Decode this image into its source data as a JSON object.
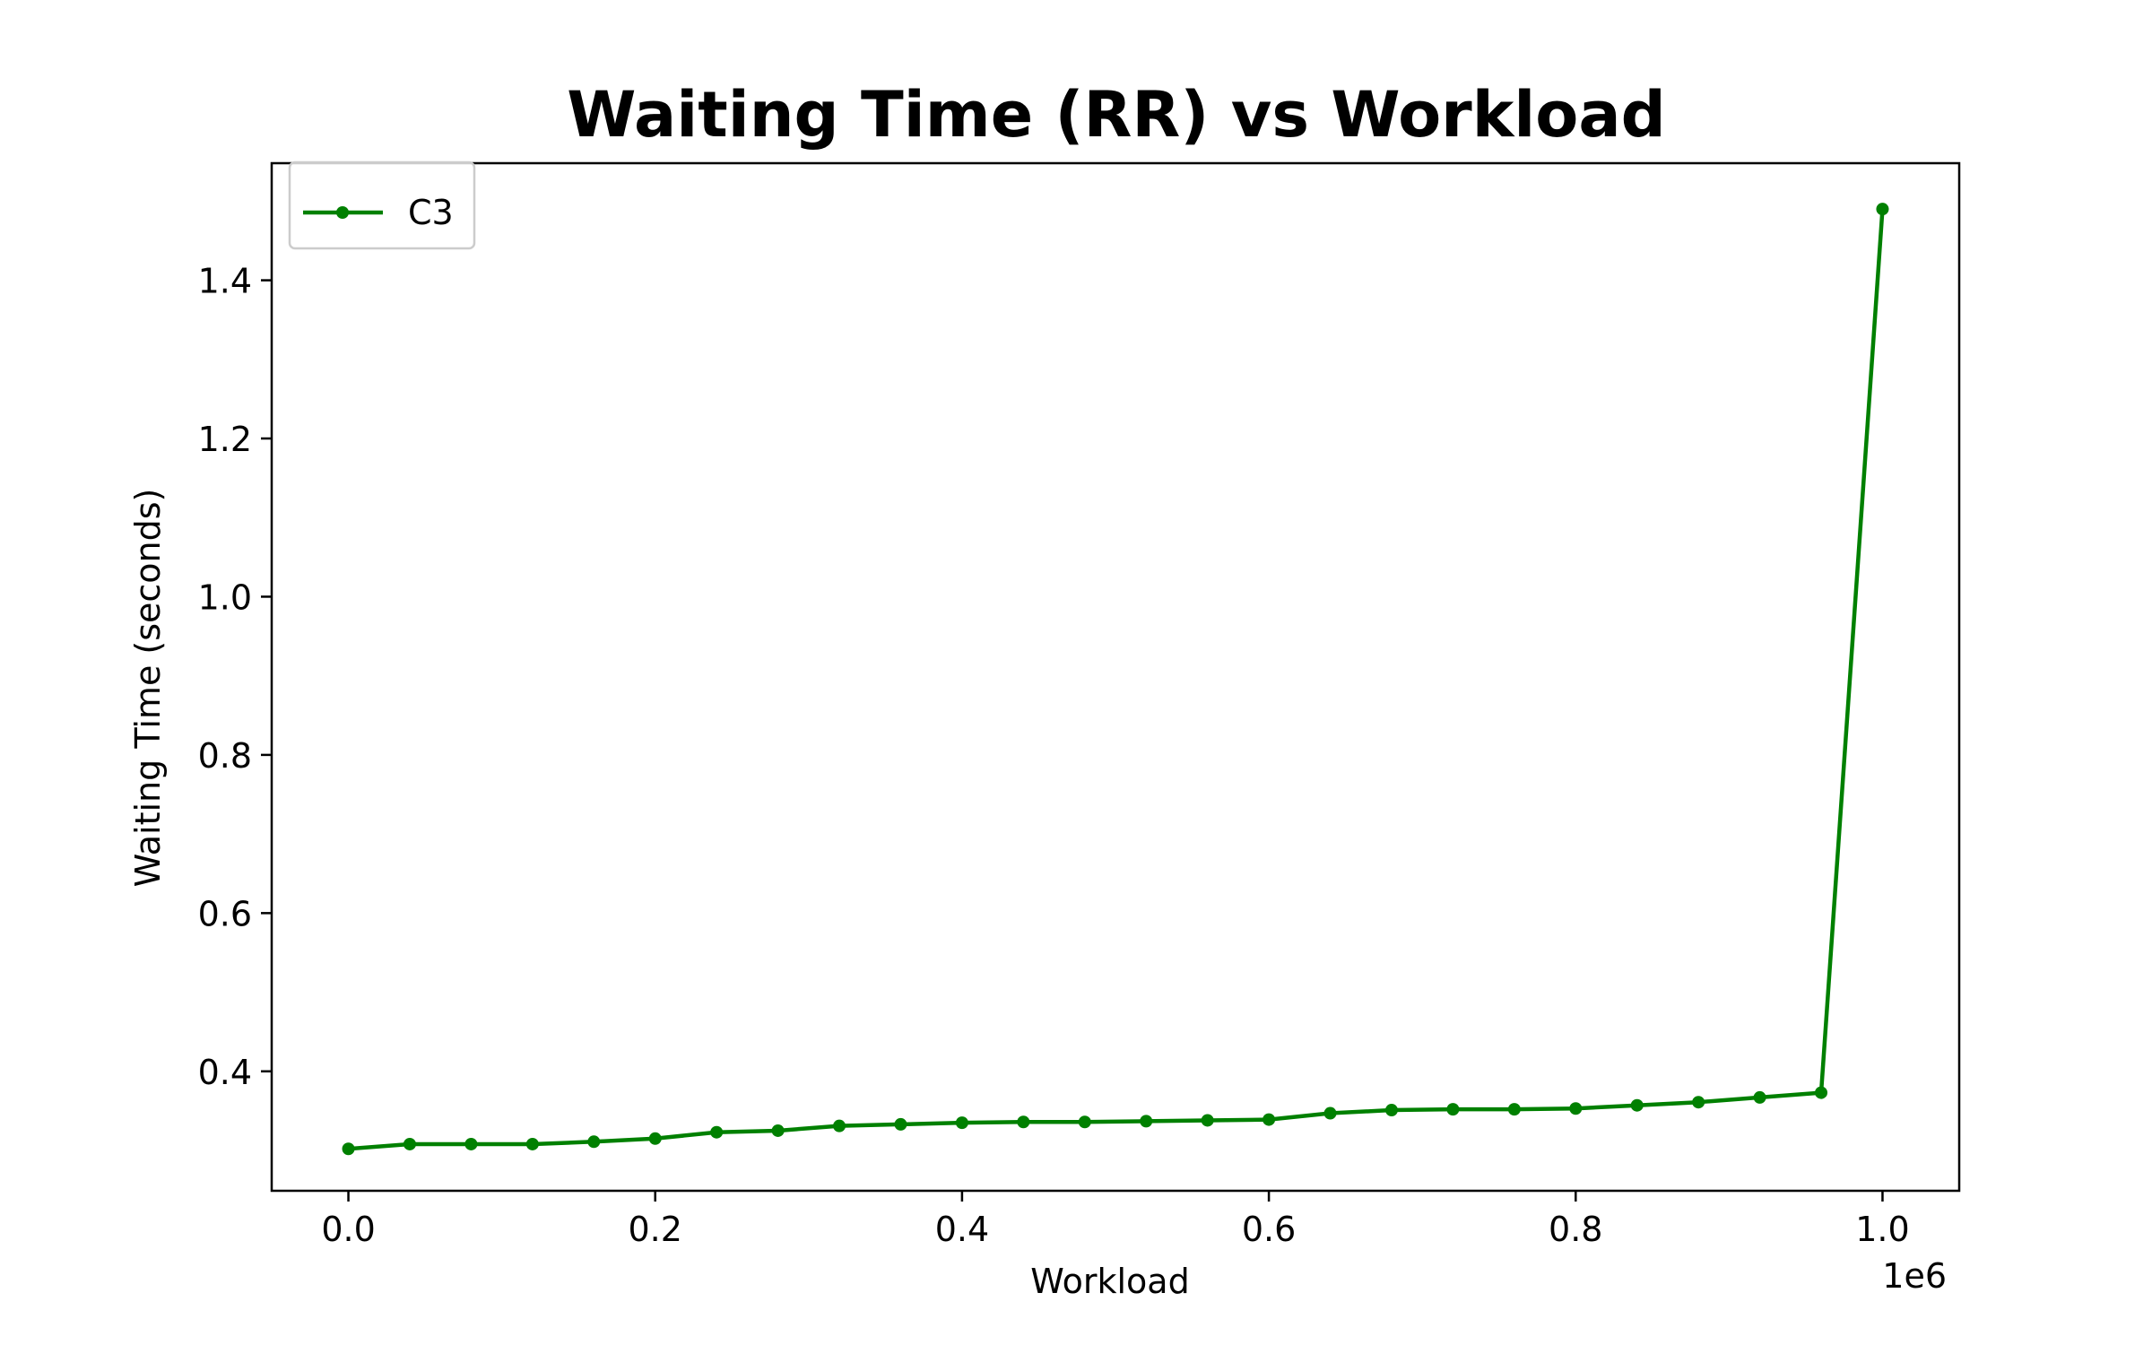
{
  "chart_data": {
    "type": "line",
    "title": "Waiting Time (RR) vs Workload",
    "xlabel": "Workload",
    "ylabel": "Waiting Time (seconds)",
    "x_offset_label": "1e6",
    "x_scale": 1000000,
    "xlim": [
      -50000,
      1050000
    ],
    "ylim": [
      0.249,
      1.548
    ],
    "x_ticks": [
      0,
      200000,
      400000,
      600000,
      800000,
      1000000
    ],
    "x_tick_labels": [
      "0.0",
      "0.2",
      "0.4",
      "0.6",
      "0.8",
      "1.0"
    ],
    "y_ticks": [
      0.4,
      0.6,
      0.8,
      1.0,
      1.2,
      1.4
    ],
    "y_tick_labels": [
      "0.4",
      "0.6",
      "0.8",
      "1.0",
      "1.2",
      "1.4"
    ],
    "grid": false,
    "legend_position": "top-left",
    "series": [
      {
        "name": "C3",
        "color": "#008000",
        "marker": "circle",
        "x": [
          0,
          40000,
          80000,
          120000,
          160000,
          200000,
          240000,
          280000,
          320000,
          360000,
          400000,
          440000,
          480000,
          520000,
          560000,
          600000,
          640000,
          680000,
          720000,
          760000,
          800000,
          840000,
          880000,
          920000,
          960000,
          1000000
        ],
        "y": [
          0.302,
          0.308,
          0.308,
          0.308,
          0.311,
          0.315,
          0.323,
          0.325,
          0.331,
          0.333,
          0.335,
          0.336,
          0.336,
          0.337,
          0.338,
          0.339,
          0.347,
          0.351,
          0.352,
          0.352,
          0.353,
          0.357,
          0.361,
          0.367,
          0.373,
          1.49
        ]
      }
    ]
  }
}
